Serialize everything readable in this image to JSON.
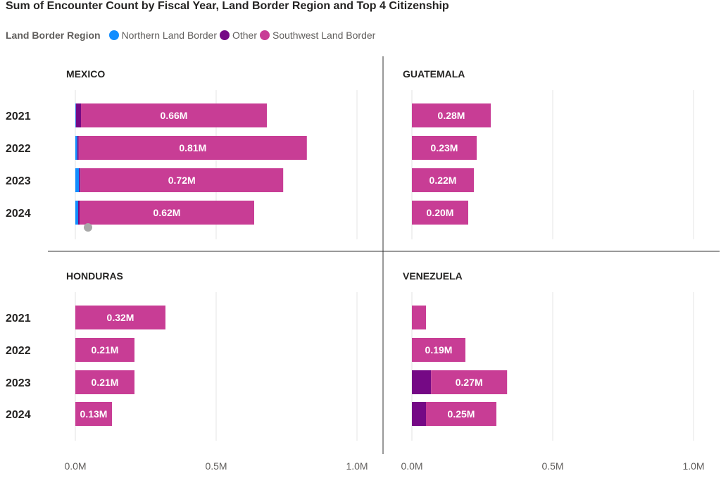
{
  "chart_data": {
    "type": "bar",
    "orientation": "horizontal",
    "stacked": true,
    "title": "Sum of Encounter Count by Fiscal Year, Land Border Region and Top 4 Citizenship",
    "legend": {
      "title": "Land Border Region",
      "placement": "top-left",
      "items": [
        {
          "name": "Northern Land Border",
          "color": "#118DFF"
        },
        {
          "name": "Other",
          "color": "#750985"
        },
        {
          "name": "Southwest Land Border",
          "color": "#C83D95"
        }
      ]
    },
    "categories": [
      "2021",
      "2022",
      "2023",
      "2024"
    ],
    "x_ticks": [
      "0.0M",
      "0.5M",
      "1.0M"
    ],
    "xlim": [
      0,
      1.0
    ],
    "grid": true,
    "panels": [
      {
        "name": "MEXICO",
        "series": [
          {
            "name": "Northern Land Border",
            "values": [
              0.002,
              0.007,
              0.013,
              0.01
            ]
          },
          {
            "name": "Other",
            "values": [
              0.018,
              0.005,
              0.005,
              0.005
            ]
          },
          {
            "name": "Southwest Land Border",
            "values": [
              0.66,
              0.81,
              0.72,
              0.62
            ]
          }
        ],
        "labels": [
          "0.66M",
          "0.81M",
          "0.72M",
          "0.62M"
        ]
      },
      {
        "name": "GUATEMALA",
        "series": [
          {
            "name": "Northern Land Border",
            "values": [
              0,
              0,
              0,
              0
            ]
          },
          {
            "name": "Other",
            "values": [
              0,
              0,
              0,
              0
            ]
          },
          {
            "name": "Southwest Land Border",
            "values": [
              0.28,
              0.23,
              0.22,
              0.2
            ]
          }
        ],
        "labels": [
          "0.28M",
          "0.23M",
          "0.22M",
          "0.20M"
        ]
      },
      {
        "name": "HONDURAS",
        "series": [
          {
            "name": "Northern Land Border",
            "values": [
              0,
              0,
              0,
              0
            ]
          },
          {
            "name": "Other",
            "values": [
              0,
              0,
              0,
              0
            ]
          },
          {
            "name": "Southwest Land Border",
            "values": [
              0.32,
              0.21,
              0.21,
              0.13
            ]
          }
        ],
        "labels": [
          "0.32M",
          "0.21M",
          "0.21M",
          "0.13M"
        ]
      },
      {
        "name": "VENEZUELA",
        "series": [
          {
            "name": "Northern Land Border",
            "values": [
              0,
              0,
              0,
              0
            ]
          },
          {
            "name": "Other",
            "values": [
              0,
              0,
              0.068,
              0.05
            ]
          },
          {
            "name": "Southwest Land Border",
            "values": [
              0.05,
              0.19,
              0.27,
              0.25
            ]
          }
        ],
        "labels": [
          "",
          "0.19M",
          "0.27M",
          "0.25M"
        ]
      }
    ]
  }
}
